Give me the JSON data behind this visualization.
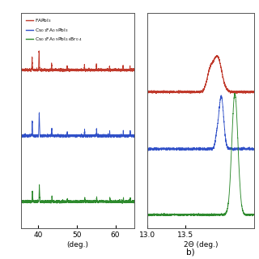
{
  "legend_labels": [
    "FAPbI$_3$",
    "Cs$_{0.1}$FA$_{0.9}$PbI$_3$",
    "Cs$_{0.1}$FA$_{0.9}$PbI$_{2.6}$Br$_{0.4}$"
  ],
  "colors": [
    "#c0392b",
    "#3050c8",
    "#2d8a2d"
  ],
  "panel_a": {
    "xlabel": "(deg.)",
    "xmin": 35.5,
    "xmax": 65.0,
    "xticks": [
      40,
      50,
      60
    ],
    "offsets": [
      0.72,
      0.42,
      0.12
    ]
  },
  "panel_b": {
    "xlabel": "2Θ (deg.)",
    "xmin": 13.0,
    "xmax": 14.4,
    "xticks": [
      13.0,
      13.5
    ],
    "offsets": [
      0.62,
      0.36,
      0.06
    ]
  }
}
